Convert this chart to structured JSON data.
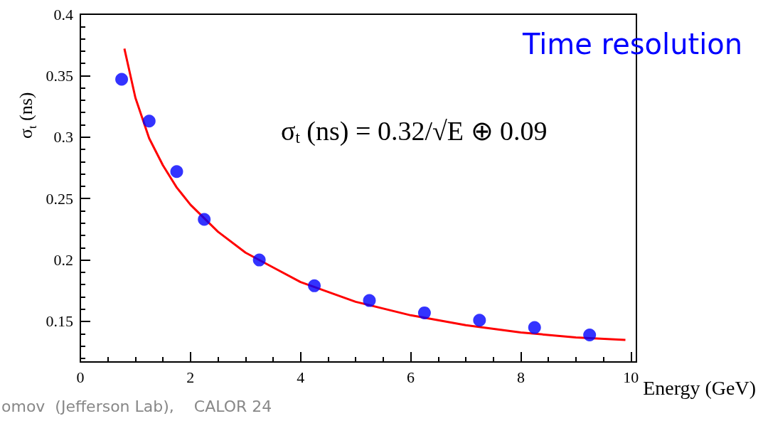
{
  "chart_data": {
    "type": "scatter",
    "xlabel": "Energy (GeV)",
    "ylabel": "σ$_{t}$  (ns)",
    "annotations": [
      "Time resolution",
      "σ$_{t}$ (ns) = 0.32/√E ⊕ 0.09",
      "omov  (Jefferson Lab),    CALOR 24"
    ],
    "xlim": [
      0,
      10.1
    ],
    "xticks": [
      0,
      2,
      4,
      6,
      8,
      10
    ],
    "ylim": [
      0.117,
      0.4
    ],
    "yticks": [
      0.15,
      0.2,
      0.25,
      0.3,
      0.35,
      0.4
    ],
    "grid": false,
    "marker": "circle",
    "x": [
      0.75,
      1.25,
      1.75,
      2.25,
      3.25,
      4.25,
      5.25,
      6.25,
      7.25,
      8.25,
      9.25
    ],
    "series": [
      {
        "type": "scatter",
        "color": "#0000ff",
        "values": [
          0.347,
          0.313,
          0.272,
          0.233,
          0.2,
          0.179,
          0.167,
          0.157,
          0.151,
          0.145,
          0.139
        ]
      },
      {
        "type": "line",
        "color": "#ff0000",
        "marker": "none",
        "x": [
          0.8,
          1,
          1.25,
          1.5,
          1.75,
          2,
          2.5,
          3,
          3.5,
          4,
          5,
          6,
          7,
          8,
          9,
          9.9
        ],
        "values": [
          0.372,
          0.332,
          0.299,
          0.277,
          0.259,
          0.245,
          0.223,
          0.206,
          0.194,
          0.182,
          0.166,
          0.155,
          0.147,
          0.141,
          0.137,
          0.135
        ]
      }
    ]
  }
}
